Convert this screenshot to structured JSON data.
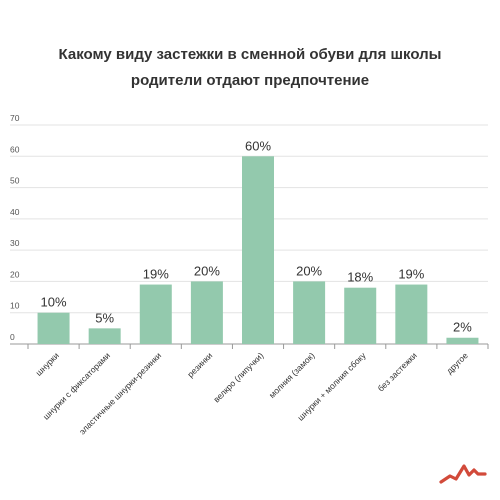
{
  "chart_data": {
    "type": "bar",
    "title_line1": "Какому виду застежки в сменной обуви для школы",
    "title_line2": "родители  отдают предпочтение",
    "categories": [
      "шнурки",
      "шнурки с фиксаторами",
      "эластичные шнурки-резинки",
      "резинки",
      "велкро (липучки)",
      "молния (замок)",
      "шнурки + молния сбоку",
      "без застежки",
      "другое"
    ],
    "values": [
      10,
      5,
      19,
      20,
      60,
      20,
      18,
      19,
      2
    ],
    "data_labels": [
      "10%",
      "5%",
      "19%",
      "20%",
      "60%",
      "20%",
      "18%",
      "19%",
      "2%"
    ],
    "yticks": [
      0,
      10,
      20,
      30,
      40,
      50,
      60,
      70
    ],
    "ylim": [
      0,
      70
    ],
    "grid": true,
    "bar_color": "#93c9ad",
    "grid_color": "#e3e3e3",
    "text_color": "#333333"
  },
  "logo": {
    "color": "#d24a3a"
  }
}
